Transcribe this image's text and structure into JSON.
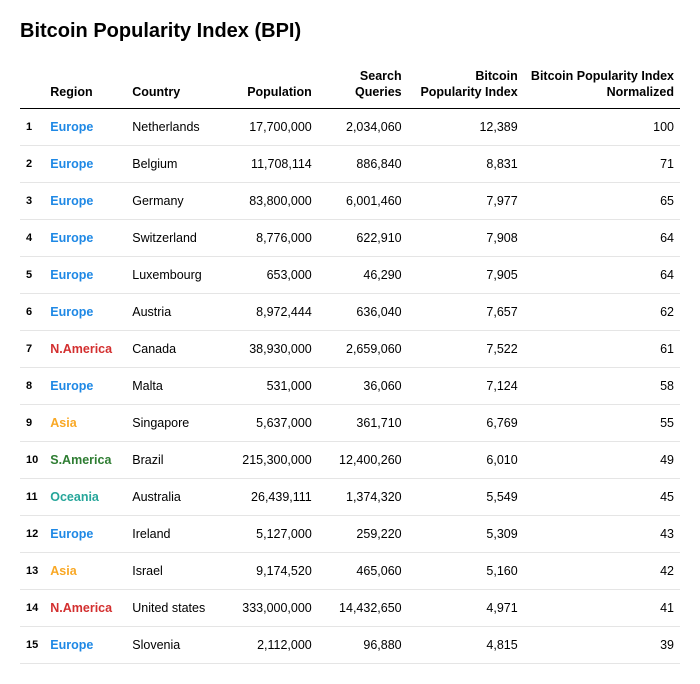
{
  "title": "Bitcoin Popularity Index (BPI)",
  "headers": {
    "rank": "",
    "region": "Region",
    "country": "Country",
    "population": "Population",
    "queries": "Search Queries",
    "bpi": "Bitcoin Popularity Index",
    "bpi_norm": "Bitcoin Popularity Index Normalized"
  },
  "region_colors": {
    "Europe": "#1e88e5",
    "N.America": "#d32f2f",
    "Asia": "#f9a825",
    "S.America": "#2e7d32",
    "Oceania": "#26a69a"
  },
  "styling": {
    "title_fontsize": 20,
    "header_fontsize": 12.5,
    "body_fontsize": 12.5,
    "rank_fontsize": 11,
    "header_border_color": "#000000",
    "row_border_color": "#e5e5e5",
    "background": "#ffffff",
    "font_family": "Helvetica, Arial, sans-serif"
  },
  "rows": [
    {
      "rank": "1",
      "region": "Europe",
      "country": "Netherlands",
      "population": "17,700,000",
      "queries": "2,034,060",
      "bpi": "12,389",
      "bpi_norm": "100"
    },
    {
      "rank": "2",
      "region": "Europe",
      "country": "Belgium",
      "population": "11,708,114",
      "queries": "886,840",
      "bpi": "8,831",
      "bpi_norm": "71"
    },
    {
      "rank": "3",
      "region": "Europe",
      "country": "Germany",
      "population": "83,800,000",
      "queries": "6,001,460",
      "bpi": "7,977",
      "bpi_norm": "65"
    },
    {
      "rank": "4",
      "region": "Europe",
      "country": "Switzerland",
      "population": "8,776,000",
      "queries": "622,910",
      "bpi": "7,908",
      "bpi_norm": "64"
    },
    {
      "rank": "5",
      "region": "Europe",
      "country": "Luxembourg",
      "population": "653,000",
      "queries": "46,290",
      "bpi": "7,905",
      "bpi_norm": "64"
    },
    {
      "rank": "6",
      "region": "Europe",
      "country": "Austria",
      "population": "8,972,444",
      "queries": "636,040",
      "bpi": "7,657",
      "bpi_norm": "62"
    },
    {
      "rank": "7",
      "region": "N.America",
      "country": "Canada",
      "population": "38,930,000",
      "queries": "2,659,060",
      "bpi": "7,522",
      "bpi_norm": "61"
    },
    {
      "rank": "8",
      "region": "Europe",
      "country": "Malta",
      "population": "531,000",
      "queries": "36,060",
      "bpi": "7,124",
      "bpi_norm": "58"
    },
    {
      "rank": "9",
      "region": "Asia",
      "country": "Singapore",
      "population": "5,637,000",
      "queries": "361,710",
      "bpi": "6,769",
      "bpi_norm": "55"
    },
    {
      "rank": "10",
      "region": "S.America",
      "country": "Brazil",
      "population": "215,300,000",
      "queries": "12,400,260",
      "bpi": "6,010",
      "bpi_norm": "49"
    },
    {
      "rank": "11",
      "region": "Oceania",
      "country": "Australia",
      "population": "26,439,111",
      "queries": "1,374,320",
      "bpi": "5,549",
      "bpi_norm": "45"
    },
    {
      "rank": "12",
      "region": "Europe",
      "country": "Ireland",
      "population": "5,127,000",
      "queries": "259,220",
      "bpi": "5,309",
      "bpi_norm": "43"
    },
    {
      "rank": "13",
      "region": "Asia",
      "country": "Israel",
      "population": "9,174,520",
      "queries": "465,060",
      "bpi": "5,160",
      "bpi_norm": "42"
    },
    {
      "rank": "14",
      "region": "N.America",
      "country": "United states",
      "population": "333,000,000",
      "queries": "14,432,650",
      "bpi": "4,971",
      "bpi_norm": "41"
    },
    {
      "rank": "15",
      "region": "Europe",
      "country": "Slovenia",
      "population": "2,112,000",
      "queries": "96,880",
      "bpi": "4,815",
      "bpi_norm": "39"
    }
  ]
}
